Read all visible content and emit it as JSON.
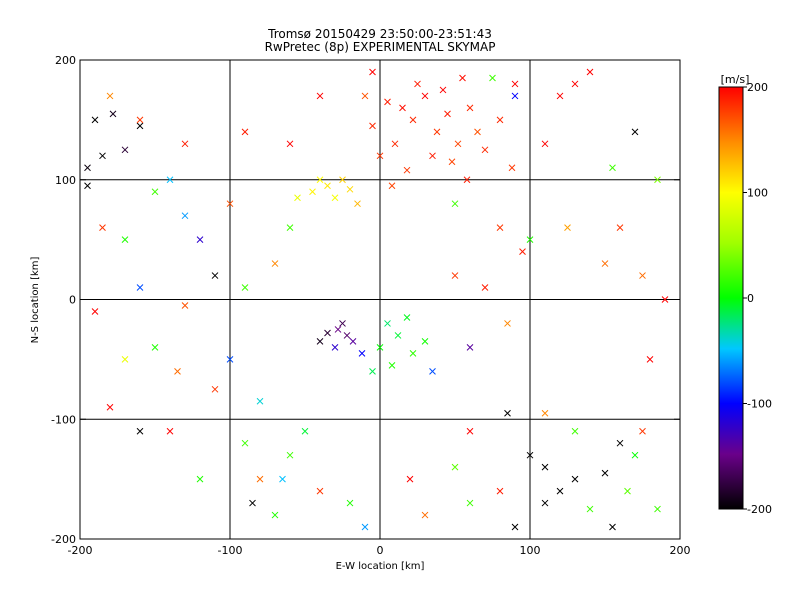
{
  "chart_data": {
    "type": "scatter",
    "title": "Tromsø 20150429 23:50:00-23:51:43",
    "subtitle": "RwPretec (8p) EXPERIMENTAL SKYMAP",
    "xlabel": "E-W location [km]",
    "ylabel": "N-S location [km]",
    "xlim": [
      -200,
      200
    ],
    "ylim": [
      -200,
      200
    ],
    "xticks": [
      "-200",
      "-100",
      "0",
      "100",
      "200"
    ],
    "yticks": [
      "-200",
      "-100",
      "0",
      "100",
      "200"
    ],
    "grid": true,
    "grid_lines_x": [
      -100,
      0,
      100
    ],
    "grid_lines_y": [
      -100,
      0,
      100
    ],
    "colorbar": {
      "label": "[m/s]",
      "range": [
        -200,
        200
      ],
      "ticks": [
        "-200",
        "-100",
        "0",
        "100",
        "200"
      ],
      "colormap": "rainbow: black - purple - blue - cyan - green - yellow - orange - red"
    },
    "marker_types": [
      "small dot",
      "cross (x)"
    ],
    "points": [
      {
        "x": 5,
        "y": 165,
        "v": 190,
        "m": "x"
      },
      {
        "x": 15,
        "y": 160,
        "v": 195,
        "m": "x"
      },
      {
        "x": 22,
        "y": 150,
        "v": 185,
        "m": "x"
      },
      {
        "x": 30,
        "y": 170,
        "v": 200,
        "m": "x"
      },
      {
        "x": 38,
        "y": 140,
        "v": 180,
        "m": "x"
      },
      {
        "x": 45,
        "y": 155,
        "v": 190,
        "m": "x"
      },
      {
        "x": 52,
        "y": 130,
        "v": 175,
        "m": "x"
      },
      {
        "x": 10,
        "y": 130,
        "v": 185,
        "m": "x"
      },
      {
        "x": 0,
        "y": 120,
        "v": 180,
        "m": "x"
      },
      {
        "x": 60,
        "y": 160,
        "v": 185,
        "m": "x"
      },
      {
        "x": 25,
        "y": 180,
        "v": 190,
        "m": "x"
      },
      {
        "x": 65,
        "y": 140,
        "v": 170,
        "m": "x"
      },
      {
        "x": 48,
        "y": 115,
        "v": 175,
        "m": "x"
      },
      {
        "x": -5,
        "y": 145,
        "v": 185,
        "m": "x"
      },
      {
        "x": 35,
        "y": 120,
        "v": 190,
        "m": "x"
      },
      {
        "x": 18,
        "y": 108,
        "v": 180,
        "m": "x"
      },
      {
        "x": 70,
        "y": 125,
        "v": 185,
        "m": "x"
      },
      {
        "x": 58,
        "y": 100,
        "v": 190,
        "m": "x"
      },
      {
        "x": 8,
        "y": 95,
        "v": 175,
        "m": "x"
      },
      {
        "x": 42,
        "y": 175,
        "v": 200,
        "m": "x"
      },
      {
        "x": -10,
        "y": 170,
        "v": 170,
        "m": "x"
      },
      {
        "x": 80,
        "y": 150,
        "v": 185,
        "m": "x"
      },
      {
        "x": 88,
        "y": 110,
        "v": 180,
        "m": "x"
      },
      {
        "x": 55,
        "y": 185,
        "v": 195,
        "m": "x"
      },
      {
        "x": -35,
        "y": 95,
        "v": 110,
        "m": "x"
      },
      {
        "x": -25,
        "y": 100,
        "v": 120,
        "m": "x"
      },
      {
        "x": -45,
        "y": 90,
        "v": 105,
        "m": "x"
      },
      {
        "x": -30,
        "y": 85,
        "v": 95,
        "m": "x"
      },
      {
        "x": -20,
        "y": 92,
        "v": 115,
        "m": "x"
      },
      {
        "x": -40,
        "y": 100,
        "v": 100,
        "m": "x"
      },
      {
        "x": -15,
        "y": 80,
        "v": 130,
        "m": "x"
      },
      {
        "x": -55,
        "y": 85,
        "v": 90,
        "m": "x"
      },
      {
        "x": -28,
        "y": -25,
        "v": -150,
        "m": "x"
      },
      {
        "x": -22,
        "y": -30,
        "v": -160,
        "m": "x"
      },
      {
        "x": -35,
        "y": -28,
        "v": -180,
        "m": "x"
      },
      {
        "x": -18,
        "y": -35,
        "v": -140,
        "m": "x"
      },
      {
        "x": -30,
        "y": -40,
        "v": -120,
        "m": "x"
      },
      {
        "x": -25,
        "y": -20,
        "v": -170,
        "m": "x"
      },
      {
        "x": -12,
        "y": -45,
        "v": -100,
        "m": "x"
      },
      {
        "x": -40,
        "y": -35,
        "v": -190,
        "m": "x"
      },
      {
        "x": 5,
        "y": -20,
        "v": -20,
        "m": "x"
      },
      {
        "x": 12,
        "y": -30,
        "v": -10,
        "m": "x"
      },
      {
        "x": 0,
        "y": -40,
        "v": 0,
        "m": "x"
      },
      {
        "x": 18,
        "y": -15,
        "v": -5,
        "m": "x"
      },
      {
        "x": 8,
        "y": -55,
        "v": 10,
        "m": "x"
      },
      {
        "x": 22,
        "y": -45,
        "v": 15,
        "m": "x"
      },
      {
        "x": -5,
        "y": -60,
        "v": -15,
        "m": "x"
      },
      {
        "x": 30,
        "y": -35,
        "v": 5,
        "m": "x"
      },
      {
        "x": -190,
        "y": 150,
        "v": -200,
        "m": "x"
      },
      {
        "x": -178,
        "y": 155,
        "v": -190,
        "m": "x"
      },
      {
        "x": -160,
        "y": 145,
        "v": -200,
        "m": "x"
      },
      {
        "x": -195,
        "y": 110,
        "v": -195,
        "m": "x"
      },
      {
        "x": -185,
        "y": 120,
        "v": -200,
        "m": "x"
      },
      {
        "x": -170,
        "y": 125,
        "v": -180,
        "m": "x"
      },
      {
        "x": -195,
        "y": 95,
        "v": -200,
        "m": "x"
      },
      {
        "x": -180,
        "y": 170,
        "v": 150,
        "m": "x"
      },
      {
        "x": -160,
        "y": 150,
        "v": 180,
        "m": "x"
      },
      {
        "x": -150,
        "y": 90,
        "v": 20,
        "m": "x"
      },
      {
        "x": -140,
        "y": 100,
        "v": -50,
        "m": "x"
      },
      {
        "x": -130,
        "y": 70,
        "v": -60,
        "m": "x"
      },
      {
        "x": -120,
        "y": 50,
        "v": -120,
        "m": "x"
      },
      {
        "x": -110,
        "y": 20,
        "v": -200,
        "m": "x"
      },
      {
        "x": -90,
        "y": 10,
        "v": 20,
        "m": "x"
      },
      {
        "x": -150,
        "y": -40,
        "v": 10,
        "m": "x"
      },
      {
        "x": -170,
        "y": -50,
        "v": 90,
        "m": "x"
      },
      {
        "x": -180,
        "y": -90,
        "v": 200,
        "m": "x"
      },
      {
        "x": -160,
        "y": -110,
        "v": -200,
        "m": "x"
      },
      {
        "x": -135,
        "y": -60,
        "v": 160,
        "m": "x"
      },
      {
        "x": -100,
        "y": -50,
        "v": -80,
        "m": "x"
      },
      {
        "x": -110,
        "y": -75,
        "v": 180,
        "m": "x"
      },
      {
        "x": -90,
        "y": -120,
        "v": 20,
        "m": "x"
      },
      {
        "x": -80,
        "y": -150,
        "v": 160,
        "m": "x"
      },
      {
        "x": -85,
        "y": -170,
        "v": -200,
        "m": "x"
      },
      {
        "x": -120,
        "y": -150,
        "v": 10,
        "m": "x"
      },
      {
        "x": -140,
        "y": -110,
        "v": 200,
        "m": "x"
      },
      {
        "x": -60,
        "y": -130,
        "v": 20,
        "m": "x"
      },
      {
        "x": -70,
        "y": -180,
        "v": 10,
        "m": "x"
      },
      {
        "x": -40,
        "y": -160,
        "v": 180,
        "m": "x"
      },
      {
        "x": -20,
        "y": -170,
        "v": 10,
        "m": "x"
      },
      {
        "x": -10,
        "y": -190,
        "v": -60,
        "m": "x"
      },
      {
        "x": 20,
        "y": -150,
        "v": 200,
        "m": "x"
      },
      {
        "x": 50,
        "y": -140,
        "v": 30,
        "m": "x"
      },
      {
        "x": 80,
        "y": -160,
        "v": 190,
        "m": "x"
      },
      {
        "x": 100,
        "y": -130,
        "v": -200,
        "m": "x"
      },
      {
        "x": 110,
        "y": -140,
        "v": -200,
        "m": "x"
      },
      {
        "x": 120,
        "y": -160,
        "v": -200,
        "m": "x"
      },
      {
        "x": 130,
        "y": -150,
        "v": -200,
        "m": "x"
      },
      {
        "x": 140,
        "y": -175,
        "v": 20,
        "m": "x"
      },
      {
        "x": 155,
        "y": -190,
        "v": -200,
        "m": "x"
      },
      {
        "x": 160,
        "y": -120,
        "v": -200,
        "m": "x"
      },
      {
        "x": 170,
        "y": -130,
        "v": 0,
        "m": "x"
      },
      {
        "x": 150,
        "y": -145,
        "v": -200,
        "m": "x"
      },
      {
        "x": 130,
        "y": -110,
        "v": 20,
        "m": "x"
      },
      {
        "x": 175,
        "y": -110,
        "v": 180,
        "m": "x"
      },
      {
        "x": 90,
        "y": -190,
        "v": -200,
        "m": "x"
      },
      {
        "x": 60,
        "y": -110,
        "v": 200,
        "m": "x"
      },
      {
        "x": 85,
        "y": -95,
        "v": -200,
        "m": "x"
      },
      {
        "x": 110,
        "y": -95,
        "v": 150,
        "m": "x"
      },
      {
        "x": 125,
        "y": 60,
        "v": 140,
        "m": "x"
      },
      {
        "x": 150,
        "y": 30,
        "v": 160,
        "m": "x"
      },
      {
        "x": 175,
        "y": 20,
        "v": 160,
        "m": "x"
      },
      {
        "x": 180,
        "y": -50,
        "v": 200,
        "m": "x"
      },
      {
        "x": 190,
        "y": 0,
        "v": 200,
        "m": "x"
      },
      {
        "x": 160,
        "y": 60,
        "v": 180,
        "m": "x"
      },
      {
        "x": 140,
        "y": 190,
        "v": 200,
        "m": "x"
      },
      {
        "x": 120,
        "y": 170,
        "v": 200,
        "m": "x"
      },
      {
        "x": 170,
        "y": 140,
        "v": -200,
        "m": "x"
      },
      {
        "x": 185,
        "y": 100,
        "v": 40,
        "m": "x"
      },
      {
        "x": 155,
        "y": 110,
        "v": 20,
        "m": "x"
      },
      {
        "x": 100,
        "y": 50,
        "v": 10,
        "m": "x"
      },
      {
        "x": 130,
        "y": 180,
        "v": 200,
        "m": "x"
      },
      {
        "x": 90,
        "y": 170,
        "v": -100,
        "m": "x"
      },
      {
        "x": 75,
        "y": 185,
        "v": 20,
        "m": "x"
      },
      {
        "x": 50,
        "y": 80,
        "v": 20,
        "m": "x"
      },
      {
        "x": -60,
        "y": 130,
        "v": 200,
        "m": "x"
      },
      {
        "x": -90,
        "y": 140,
        "v": 190,
        "m": "x"
      },
      {
        "x": -130,
        "y": 130,
        "v": 190,
        "m": "x"
      },
      {
        "x": -70,
        "y": 30,
        "v": 150,
        "m": "x"
      },
      {
        "x": -60,
        "y": 60,
        "v": 20,
        "m": "x"
      },
      {
        "x": -100,
        "y": 80,
        "v": 170,
        "m": "x"
      },
      {
        "x": -170,
        "y": 50,
        "v": 10,
        "m": "x"
      },
      {
        "x": -160,
        "y": 10,
        "v": -80,
        "m": "x"
      },
      {
        "x": -190,
        "y": -10,
        "v": 200,
        "m": "x"
      },
      {
        "x": -185,
        "y": 60,
        "v": 180,
        "m": "x"
      },
      {
        "x": -130,
        "y": -5,
        "v": 170,
        "m": "x"
      },
      {
        "x": -80,
        "y": -85,
        "v": -40,
        "m": "x"
      },
      {
        "x": -50,
        "y": -110,
        "v": -10,
        "m": "x"
      },
      {
        "x": -65,
        "y": -150,
        "v": -50,
        "m": "x"
      },
      {
        "x": 30,
        "y": -180,
        "v": 160,
        "m": "x"
      },
      {
        "x": 60,
        "y": -170,
        "v": 20,
        "m": "x"
      },
      {
        "x": 110,
        "y": -170,
        "v": -200,
        "m": "x"
      },
      {
        "x": 165,
        "y": -160,
        "v": 30,
        "m": "x"
      },
      {
        "x": 185,
        "y": -175,
        "v": 20,
        "m": "x"
      },
      {
        "x": 35,
        "y": -60,
        "v": -80,
        "m": "x"
      },
      {
        "x": 60,
        "y": -40,
        "v": -140,
        "m": "x"
      },
      {
        "x": 50,
        "y": 20,
        "v": 180,
        "m": "x"
      },
      {
        "x": 70,
        "y": 10,
        "v": 190,
        "m": "x"
      },
      {
        "x": 95,
        "y": 40,
        "v": 190,
        "m": "x"
      },
      {
        "x": 80,
        "y": 60,
        "v": 180,
        "m": "x"
      },
      {
        "x": 85,
        "y": -20,
        "v": 150,
        "m": "x"
      },
      {
        "x": -40,
        "y": 170,
        "v": 200,
        "m": "x"
      },
      {
        "x": -5,
        "y": 190,
        "v": 200,
        "m": "x"
      },
      {
        "x": 90,
        "y": 180,
        "v": 200,
        "m": "x"
      },
      {
        "x": 110,
        "y": 130,
        "v": 200,
        "m": "x"
      }
    ]
  }
}
